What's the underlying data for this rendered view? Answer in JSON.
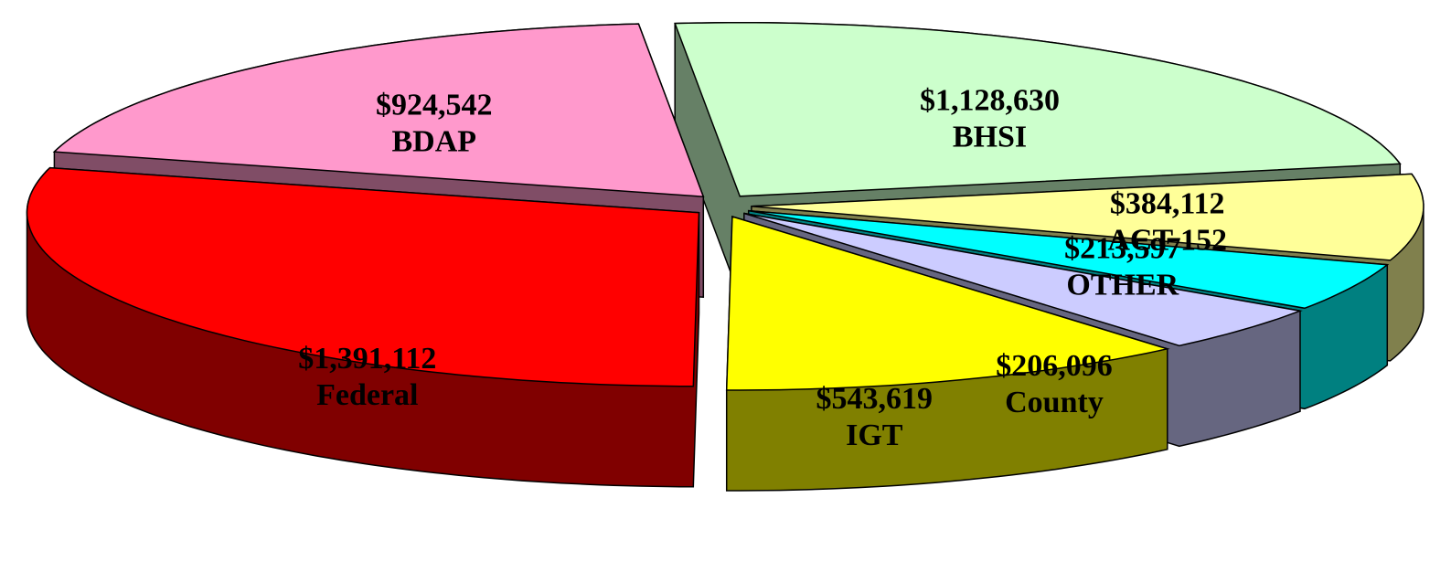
{
  "chart_data": {
    "type": "pie3d",
    "categories": [
      "BDAP",
      "BHSI",
      "ACT 152",
      "OTHER",
      "County",
      "IGT",
      "Federal"
    ],
    "values": [
      924542,
      1128630,
      384112,
      213597,
      206096,
      543619,
      1391112
    ],
    "value_labels": [
      "$924,542",
      "$1,128,630",
      "$384,112",
      "$213,597",
      "$206,096",
      "$543,619",
      "$1,391,112"
    ],
    "colors": [
      "#ff99cc",
      "#ccffcc",
      "#ffff99",
      "#00ffff",
      "#ccccff",
      "#ffff00",
      "#ff0000"
    ]
  }
}
